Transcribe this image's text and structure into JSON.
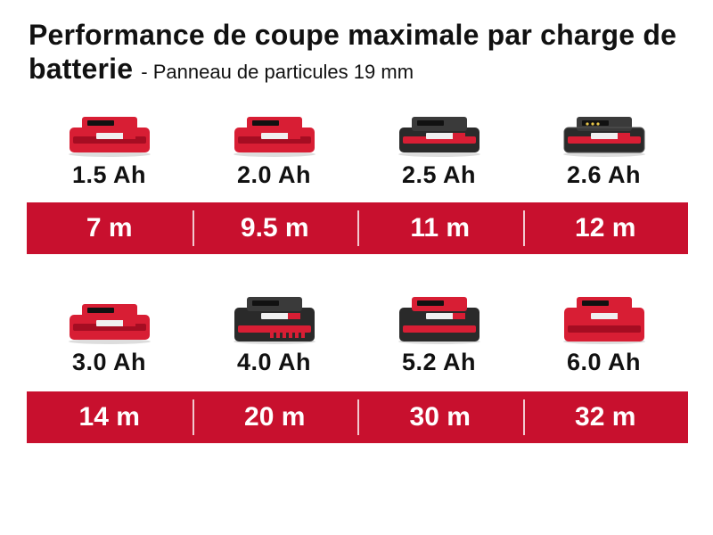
{
  "title": {
    "main": "Performance de coupe maximale par charge de batterie",
    "subtitle": "- Panneau de particules 19 mm"
  },
  "colors": {
    "band": "#c8102e",
    "battery_red": "#d81e34",
    "battery_dark": "#2a2a2a",
    "text": "#111111"
  },
  "rows": [
    {
      "batteries": [
        {
          "capacity": "1.5 Ah",
          "runtime": "7 m",
          "style": "red-flat",
          "icon": "battery-pack-icon"
        },
        {
          "capacity": "2.0 Ah",
          "runtime": "9.5 m",
          "style": "red-flat",
          "icon": "battery-pack-icon"
        },
        {
          "capacity": "2.5 Ah",
          "runtime": "11 m",
          "style": "dark-flat",
          "icon": "battery-pack-icon"
        },
        {
          "capacity": "2.6 Ah",
          "runtime": "12 m",
          "style": "dark-plus",
          "icon": "battery-pack-icon"
        }
      ]
    },
    {
      "batteries": [
        {
          "capacity": "3.0 Ah",
          "runtime": "14 m",
          "style": "red-flat",
          "icon": "battery-pack-icon"
        },
        {
          "capacity": "4.0 Ah",
          "runtime": "20 m",
          "style": "dark-tall",
          "icon": "battery-pack-icon"
        },
        {
          "capacity": "5.2 Ah",
          "runtime": "30 m",
          "style": "dark-tall-red",
          "icon": "battery-pack-icon"
        },
        {
          "capacity": "6.0 Ah",
          "runtime": "32 m",
          "style": "red-tall",
          "icon": "battery-pack-icon"
        }
      ]
    }
  ]
}
